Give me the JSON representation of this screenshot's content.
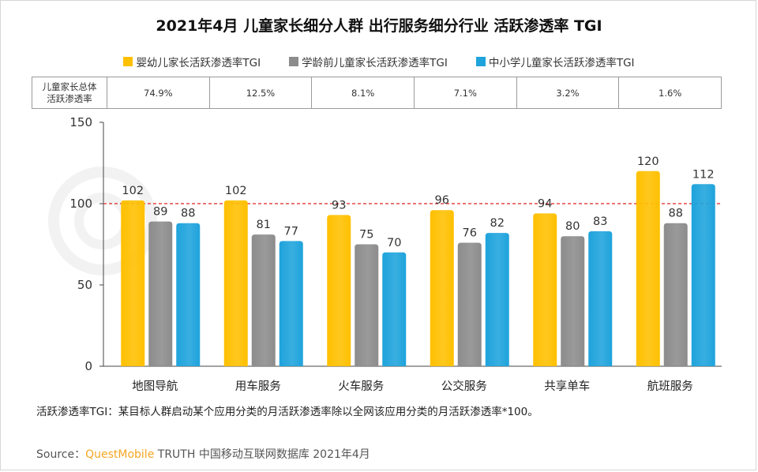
{
  "title": "2021年4月 儿童家长细分人群 出行服务细分行业 活跃渗透率 TGI",
  "legend": [
    {
      "label": "婴幼儿家长活跃渗透率TGI",
      "color": "#ffc000"
    },
    {
      "label": "学龄前儿童家长活跃渗透率TGI",
      "color": "#8c8c8c"
    },
    {
      "label": "中小学儿童家长活跃渗透率TGI",
      "color": "#1ea3dc"
    }
  ],
  "overall_row": {
    "label_line1": "儿童家长总体",
    "label_line2": "活跃渗透率",
    "values": [
      "74.9%",
      "12.5%",
      "8.1%",
      "7.1%",
      "3.2%",
      "1.6%"
    ]
  },
  "chart_data": {
    "type": "bar",
    "title": "2021年4月 儿童家长细分人群 出行服务细分行业 活跃渗透率 TGI",
    "categories": [
      "地图导航",
      "用车服务",
      "火车服务",
      "公交服务",
      "共享单车",
      "航班服务"
    ],
    "series": [
      {
        "name": "婴幼儿家长活跃渗透率TGI",
        "values": [
          102,
          102,
          93,
          96,
          94,
          120
        ],
        "color": "#ffc000"
      },
      {
        "name": "学龄前儿童家长活跃渗透率TGI",
        "values": [
          89,
          81,
          75,
          76,
          80,
          88
        ],
        "color": "#8c8c8c"
      },
      {
        "name": "中小学儿童家长活跃渗透率TGI",
        "values": [
          88,
          77,
          70,
          82,
          83,
          112
        ],
        "color": "#1ea3dc"
      }
    ],
    "ylim": [
      0,
      150
    ],
    "yticks": [
      "0",
      "50",
      "100",
      "150"
    ],
    "reference_line": 100,
    "xlabel": "",
    "ylabel": "",
    "legend_position": "top"
  },
  "note": "活跃渗透率TGI：某目标人群启动某个应用分类的月活跃渗透率除以全网该应用分类的月活跃渗透率*100。",
  "source": {
    "prefix": "Source：",
    "brand": "QuestMobile",
    "suffix": " TRUTH 中国移动互联网数据库 2021年4月"
  }
}
